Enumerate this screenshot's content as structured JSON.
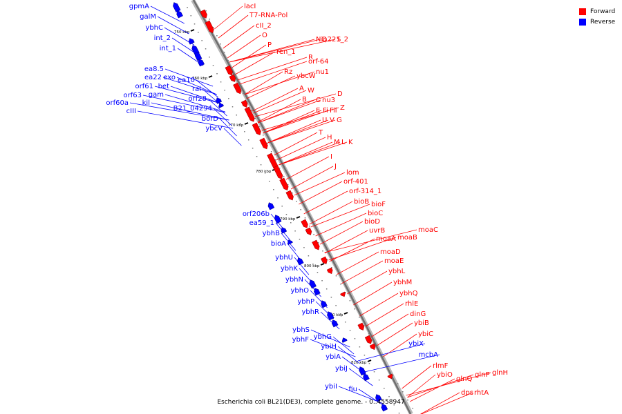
{
  "legend": {
    "forward_label": "Forward",
    "reverse_label": "Reverse",
    "forward_color": "#ff0000",
    "reverse_color": "#0000ff"
  },
  "caption": "Escherichia coli BL21(DE3), complete genome. - 0..4558947",
  "ticks": [
    "750 kbp",
    "760 kbp",
    "770 kbp",
    "780 kbp",
    "790 kbp",
    "800 kbp",
    "810 kbp",
    "820 kbp"
  ],
  "forward_genes": [
    "lacI",
    "T7-RNA-Pol",
    "cII_2",
    "O",
    "P",
    "ren_1",
    "Nin221_2",
    "Q",
    "S",
    "R",
    "orf-64",
    "nu1",
    "ybcW",
    "Rz",
    "A",
    "W",
    "D",
    "nu3",
    "B",
    "C",
    "E",
    "Fi",
    "Fii",
    "Z",
    "U",
    "V",
    "G",
    "T",
    "H",
    "M",
    "L",
    "K",
    "I",
    "J",
    "lom",
    "orf-401",
    "orf-314_1",
    "bioB",
    "bioF",
    "bioC",
    "bioD",
    "uvrB",
    "moaC",
    "moaB",
    "moaA",
    "moaD",
    "moaE",
    "ybhL",
    "ybhM",
    "ybhQ",
    "rhlE",
    "dinG",
    "ybiB",
    "ybiC",
    "rlmF",
    "ybiO",
    "glnQ",
    "glnP",
    "glnH",
    "dps",
    "rhtA"
  ],
  "reverse_genes": [
    "gpmA",
    "galM",
    "ybhC",
    "int_2",
    "int_1",
    "ea8.5",
    "ea22",
    "exo",
    "ea10",
    "orf61",
    "bet",
    "orf63",
    "gam",
    "orf60a",
    "kil",
    "cIII",
    "ral",
    "orf28",
    "B21_04294",
    "borD",
    "ybcV",
    "orf206b",
    "ea59_1",
    "ybhB",
    "bioA",
    "ybhU",
    "ybhK",
    "ybhN",
    "ybhO",
    "ybhP",
    "ybhR",
    "ybhS",
    "ybhF",
    "ybhG",
    "ybiH",
    "ybiA",
    "ybiJ",
    "ybiI",
    "fiu",
    "ybiX",
    "mcbA"
  ]
}
